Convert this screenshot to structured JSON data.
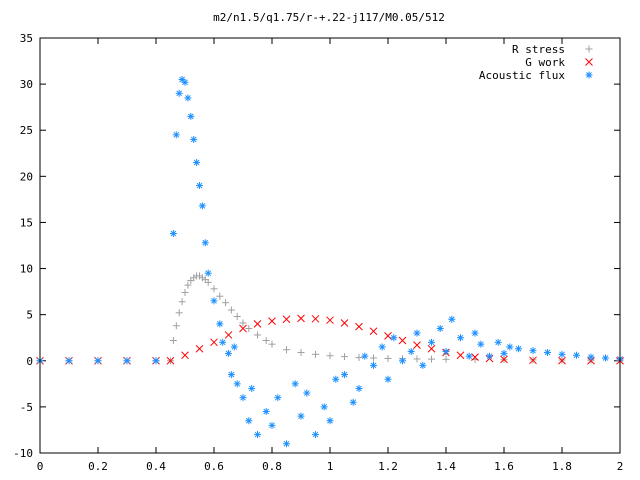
{
  "chart_data": {
    "type": "scatter",
    "title": "m2/n1.5/q1.75/r-+.22-j117/M0.05/512",
    "xlabel": "",
    "ylabel": "",
    "xlim": [
      0,
      2
    ],
    "ylim": [
      -10,
      35
    ],
    "x_ticks": [
      "0",
      "0.2",
      "0.4",
      "0.6",
      "0.8",
      "1",
      "1.2",
      "1.4",
      "1.6",
      "1.8",
      "2"
    ],
    "y_ticks": [
      "-10",
      "-5",
      "0",
      "5",
      "10",
      "15",
      "20",
      "25",
      "30",
      "35"
    ],
    "legend_position": "top-right",
    "grid": false,
    "series": [
      {
        "name": "R stress",
        "marker": "+",
        "color": "#a0a0a0",
        "x": [
          0.0,
          0.1,
          0.2,
          0.3,
          0.4,
          0.45,
          0.46,
          0.47,
          0.48,
          0.49,
          0.5,
          0.51,
          0.52,
          0.53,
          0.54,
          0.55,
          0.56,
          0.57,
          0.58,
          0.6,
          0.62,
          0.64,
          0.66,
          0.68,
          0.7,
          0.72,
          0.75,
          0.78,
          0.8,
          0.85,
          0.9,
          0.95,
          1.0,
          1.05,
          1.1,
          1.15,
          1.2,
          1.25,
          1.3,
          1.35,
          1.4,
          1.5,
          1.6,
          1.7,
          1.8,
          1.9,
          2.0
        ],
        "values": [
          0,
          0,
          0,
          0,
          0,
          0,
          2.2,
          3.8,
          5.2,
          6.4,
          7.4,
          8.2,
          8.7,
          9.0,
          9.2,
          9.2,
          9.0,
          8.8,
          8.5,
          7.8,
          7.0,
          6.3,
          5.5,
          4.8,
          4.1,
          3.5,
          2.8,
          2.2,
          1.8,
          1.2,
          0.9,
          0.7,
          0.55,
          0.45,
          0.35,
          0.3,
          0.25,
          0.22,
          0.2,
          0.18,
          0.16,
          0.14,
          0.12,
          0.1,
          0.08,
          0.06,
          0.05
        ]
      },
      {
        "name": "G work",
        "marker": "x",
        "color": "#ff0000",
        "x": [
          0.0,
          0.1,
          0.2,
          0.3,
          0.4,
          0.45,
          0.5,
          0.55,
          0.6,
          0.65,
          0.7,
          0.75,
          0.8,
          0.85,
          0.9,
          0.95,
          1.0,
          1.05,
          1.1,
          1.15,
          1.2,
          1.25,
          1.3,
          1.35,
          1.4,
          1.45,
          1.5,
          1.55,
          1.6,
          1.7,
          1.8,
          1.9,
          2.0
        ],
        "values": [
          0,
          0,
          0,
          0,
          0,
          0,
          0.6,
          1.3,
          2.0,
          2.8,
          3.5,
          4.0,
          4.3,
          4.5,
          4.6,
          4.55,
          4.4,
          4.1,
          3.7,
          3.2,
          2.7,
          2.2,
          1.7,
          1.3,
          0.9,
          0.6,
          0.4,
          0.25,
          0.15,
          0.05,
          0.02,
          0.0,
          0.0
        ]
      },
      {
        "name": "Acoustic flux",
        "marker": "*",
        "color": "#1e90ff",
        "x": [
          0.0,
          0.1,
          0.2,
          0.3,
          0.4,
          0.46,
          0.47,
          0.48,
          0.49,
          0.5,
          0.51,
          0.52,
          0.53,
          0.54,
          0.55,
          0.56,
          0.57,
          0.58,
          0.6,
          0.62,
          0.63,
          0.65,
          0.66,
          0.67,
          0.68,
          0.7,
          0.72,
          0.73,
          0.75,
          0.78,
          0.8,
          0.82,
          0.85,
          0.88,
          0.9,
          0.92,
          0.95,
          0.98,
          1.0,
          1.02,
          1.05,
          1.08,
          1.1,
          1.12,
          1.15,
          1.18,
          1.2,
          1.22,
          1.25,
          1.28,
          1.3,
          1.32,
          1.35,
          1.38,
          1.4,
          1.42,
          1.45,
          1.48,
          1.5,
          1.52,
          1.55,
          1.58,
          1.6,
          1.62,
          1.65,
          1.7,
          1.75,
          1.8,
          1.85,
          1.9,
          1.95,
          2.0
        ],
        "values": [
          0,
          0,
          0,
          0,
          0,
          13.8,
          24.5,
          29.0,
          30.5,
          30.2,
          28.5,
          26.5,
          24.0,
          21.5,
          19.0,
          16.8,
          12.8,
          9.5,
          6.5,
          4.0,
          2.0,
          0.8,
          -1.5,
          1.5,
          -2.5,
          -4.0,
          -6.5,
          -3.0,
          -8.0,
          -5.5,
          -7.0,
          -4.0,
          -9.0,
          -2.5,
          -6.0,
          -3.5,
          -8.0,
          -5.0,
          -6.5,
          -2.0,
          -1.5,
          -4.5,
          -3.0,
          0.5,
          -0.5,
          1.5,
          -2.0,
          2.5,
          0.0,
          1.0,
          3.0,
          -0.5,
          2.0,
          3.5,
          1.0,
          4.5,
          2.5,
          0.5,
          3.0,
          1.8,
          0.5,
          2.0,
          0.8,
          1.5,
          1.3,
          1.1,
          0.9,
          0.7,
          0.6,
          0.4,
          0.3,
          0.2
        ]
      }
    ]
  }
}
